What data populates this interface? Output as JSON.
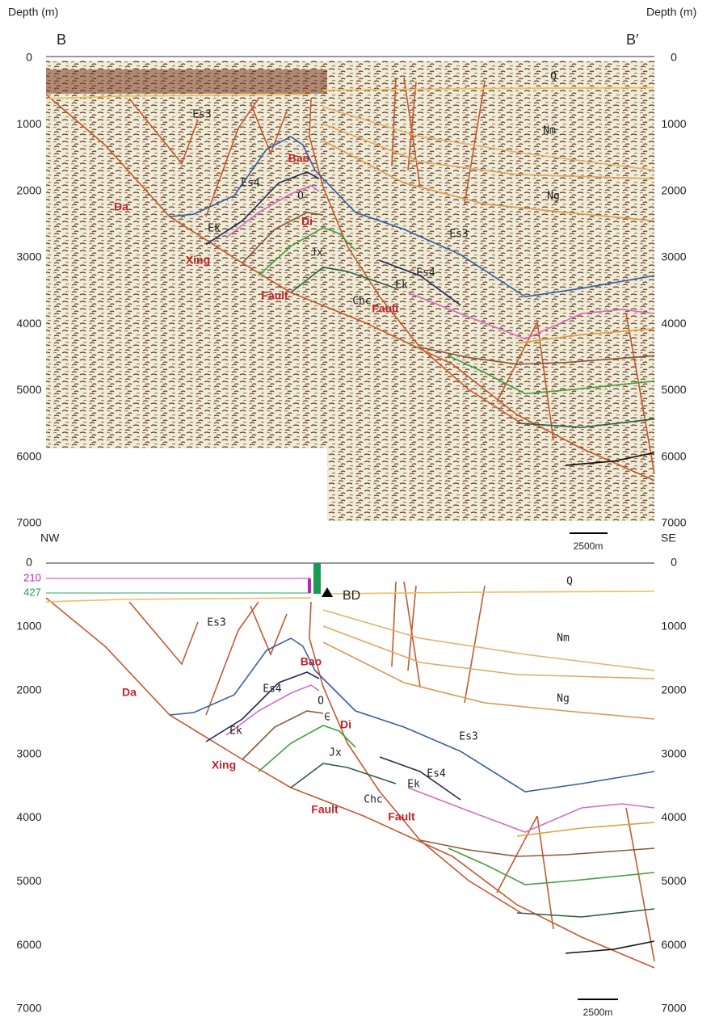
{
  "top_panel": {
    "depth_label_left": "Depth (m)",
    "depth_label_right": "Depth (m)",
    "left_marker": "B",
    "right_marker": "B′",
    "depth_ticks": [
      0,
      1000,
      2000,
      3000,
      4000,
      5000,
      6000,
      7000
    ],
    "labels": [
      "Es3",
      "Bao",
      "Es4",
      "Da",
      "O",
      "Di",
      "Ek",
      "Xing",
      "Jx",
      "Fault",
      "Chc",
      "Fault",
      "Es4",
      "Ek",
      "Es3",
      "Q",
      "Nm",
      "Ng"
    ],
    "scale_bar": "2500m"
  },
  "bottom_panel": {
    "left_direction": "NW",
    "right_direction": "SE",
    "depth_ticks": [
      0,
      1000,
      2000,
      3000,
      4000,
      5000,
      6000,
      7000
    ],
    "labels": [
      "Es3",
      "Bao",
      "Da",
      "Es4",
      "O",
      "∈",
      "Di",
      "Ek",
      "Xing",
      "Jx",
      "Fault",
      "Chc",
      "Fault",
      "Es4",
      "Ek",
      "Es3",
      "Q",
      "Nm",
      "Ng"
    ],
    "well": {
      "name": "BD",
      "marker_1": "210",
      "marker_2": "427"
    },
    "scale_bar": "2500m"
  }
}
